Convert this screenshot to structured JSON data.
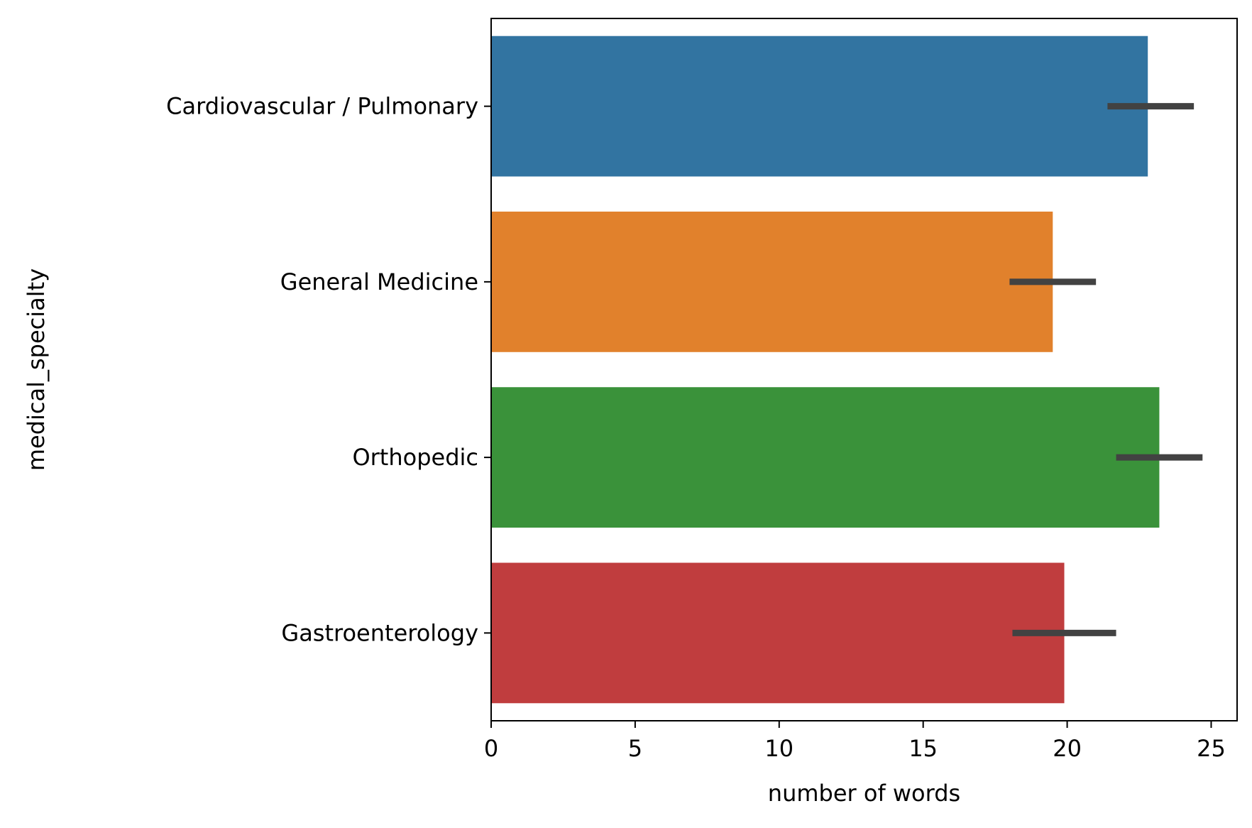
{
  "chart_data": {
    "type": "bar",
    "orientation": "horizontal",
    "title": "",
    "xlabel": "number of words",
    "ylabel": "medical_specialty",
    "xlim": [
      0,
      25.9
    ],
    "xticks": [
      "0",
      "5",
      "10",
      "15",
      "20",
      "25"
    ],
    "grid": false,
    "legend": "none",
    "categories": [
      "Cardiovascular / Pulmonary",
      "General Medicine",
      "Orthopedic",
      "Gastroenterology"
    ],
    "values": [
      22.8,
      19.5,
      23.2,
      19.9
    ],
    "error_low": [
      21.4,
      18.0,
      21.7,
      18.1
    ],
    "error_high": [
      24.4,
      21.0,
      24.7,
      21.7
    ],
    "colors": [
      "#3274a1",
      "#e1812c",
      "#3a923a",
      "#c03d3e"
    ],
    "error_color": "#424242"
  }
}
